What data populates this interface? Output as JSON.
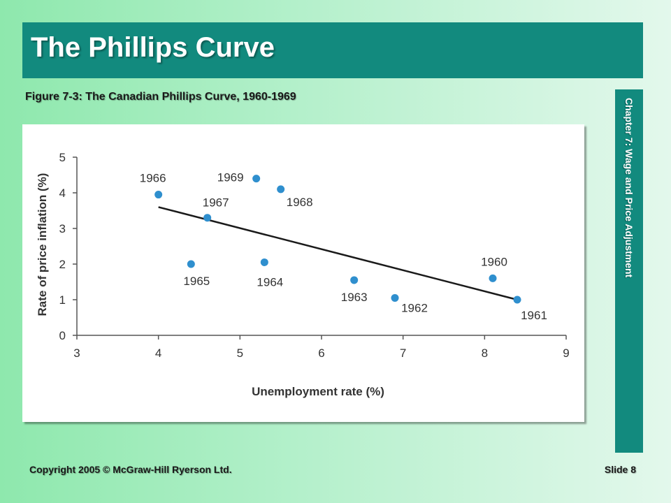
{
  "slide": {
    "title": "The Phillips Curve",
    "figure_caption": "Figure 7-3: The Canadian Phillips Curve, 1960-1969",
    "side_label": "Chapter 7: Wage and Price Adjustment",
    "copyright": "Copyright 2005 © McGraw-Hill Ryerson Ltd.",
    "slide_number": "Slide 8"
  },
  "colors": {
    "header": "#128a7e",
    "point": "#2f8fce",
    "trend_line": "#1a1a1a",
    "axis": "#555555"
  },
  "chart_data": {
    "type": "scatter",
    "xlabel": "Unemployment rate (%)",
    "ylabel": "Rate of price inflation (%)",
    "xlim": [
      3,
      9
    ],
    "ylim": [
      0,
      5
    ],
    "xticks": [
      "3",
      "4",
      "5",
      "6",
      "7",
      "8",
      "9"
    ],
    "yticks": [
      "0",
      "1",
      "2",
      "3",
      "4",
      "5"
    ],
    "grid": false,
    "points": [
      {
        "label": "1960",
        "x": 8.1,
        "y": 1.6
      },
      {
        "label": "1961",
        "x": 8.4,
        "y": 1.0
      },
      {
        "label": "1962",
        "x": 6.9,
        "y": 1.05
      },
      {
        "label": "1963",
        "x": 6.4,
        "y": 1.55
      },
      {
        "label": "1964",
        "x": 5.3,
        "y": 2.05
      },
      {
        "label": "1965",
        "x": 4.4,
        "y": 2.0
      },
      {
        "label": "1966",
        "x": 4.0,
        "y": 3.95
      },
      {
        "label": "1967",
        "x": 4.6,
        "y": 3.3
      },
      {
        "label": "1968",
        "x": 5.5,
        "y": 4.1
      },
      {
        "label": "1969",
        "x": 5.2,
        "y": 4.4
      }
    ],
    "trend_line": {
      "x": [
        4.0,
        8.4
      ],
      "y": [
        3.6,
        1.0
      ]
    }
  }
}
